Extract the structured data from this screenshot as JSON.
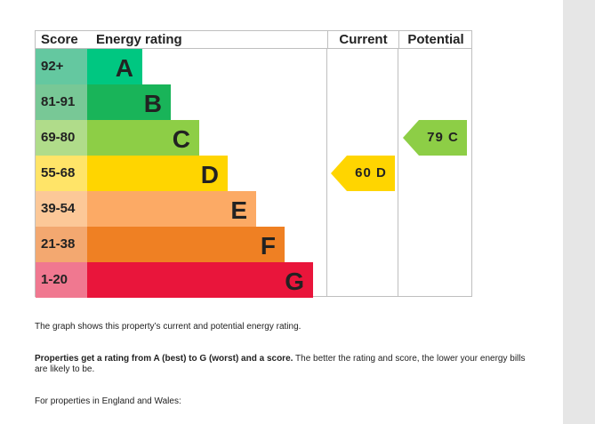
{
  "headers": {
    "score": "Score",
    "rating": "Energy rating",
    "current": "Current",
    "potential": "Potential"
  },
  "bands": [
    {
      "score": "92+",
      "letter": "A",
      "color": "#00c781",
      "scoreColor": "#64c8a0"
    },
    {
      "score": "81-91",
      "letter": "B",
      "color": "#19b459",
      "scoreColor": "#78c896"
    },
    {
      "score": "69-80",
      "letter": "C",
      "color": "#8dce46",
      "scoreColor": "#b0dc8a"
    },
    {
      "score": "55-68",
      "letter": "D",
      "color": "#ffd500",
      "scoreColor": "#ffe468"
    },
    {
      "score": "39-54",
      "letter": "E",
      "color": "#fcaa65",
      "scoreColor": "#fcc898"
    },
    {
      "score": "21-38",
      "letter": "F",
      "color": "#ef8023",
      "scoreColor": "#f3a870"
    },
    {
      "score": "1-20",
      "letter": "G",
      "color": "#e9153b",
      "scoreColor": "#f07890"
    }
  ],
  "current": {
    "value": 60,
    "letter": "D",
    "label": "60  D",
    "color": "#ffd500"
  },
  "potential": {
    "value": 79,
    "letter": "C",
    "label": "79  C",
    "color": "#8dce46"
  },
  "text": {
    "p1": "The graph shows this property’s current and potential energy rating.",
    "p2_bold": "Properties get a rating from A (best) to G (worst) and a score.",
    "p2_rest": " The better the rating and score, the lower your energy bills are likely to be.",
    "p3": "For properties in England and Wales:"
  }
}
